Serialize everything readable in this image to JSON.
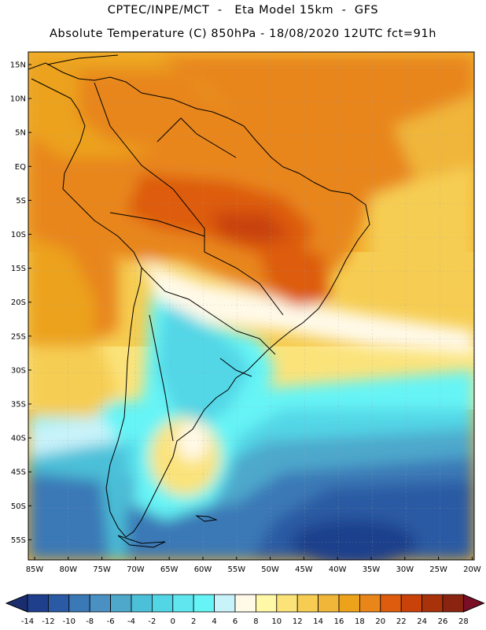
{
  "header": {
    "line1": "CPTEC/INPE/MCT  -   Eta Model 15km  -  GFS",
    "line2": "Absolute Temperature (C) 850hPa - 18/08/2020 12UTC fct=91h"
  },
  "map": {
    "lat_labels": [
      "15N",
      "10N",
      "5N",
      "EQ",
      "5S",
      "10S",
      "15S",
      "20S",
      "25S",
      "30S",
      "35S",
      "40S",
      "45S",
      "50S",
      "55S"
    ],
    "lon_labels": [
      "85W",
      "80W",
      "75W",
      "70W",
      "65W",
      "60W",
      "55W",
      "50W",
      "45W",
      "40W",
      "35W",
      "30W",
      "25W",
      "20W"
    ]
  },
  "colorbar": {
    "labels": [
      "-14",
      "-12",
      "-10",
      "-8",
      "-6",
      "-4",
      "-2",
      "0",
      "2",
      "4",
      "6",
      "8",
      "10",
      "12",
      "14",
      "16",
      "18",
      "20",
      "22",
      "24",
      "26",
      "28"
    ],
    "colors": [
      "#1f3f8c",
      "#2a5aa3",
      "#3a78b6",
      "#4a90c2",
      "#4ea8cc",
      "#4cc0d8",
      "#52d6e6",
      "#5fe6ef",
      "#66f4f6",
      "#c9f3fa",
      "#fff9e8",
      "#fff8a6",
      "#fbe37a",
      "#f6cd52",
      "#f0b63a",
      "#eca21a",
      "#e8861a",
      "#dd5c0e",
      "#c8420a",
      "#a8320a",
      "#8a2410"
    ],
    "low_color": "#1a2d6e",
    "high_color": "#7a0e26"
  }
}
